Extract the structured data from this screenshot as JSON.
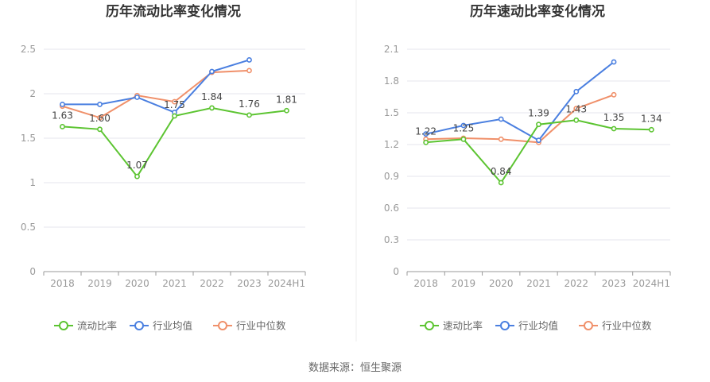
{
  "source_text": "数据来源：恒生聚源",
  "colors": {
    "primary": "#5cc431",
    "average": "#4a7fe0",
    "median": "#f0906a",
    "grid": "#e6e6ee",
    "axis": "#999999"
  },
  "chart_data": [
    {
      "type": "line",
      "title": "历年流动比率变化情况",
      "categories": [
        "2018",
        "2019",
        "2020",
        "2021",
        "2022",
        "2023",
        "2024H1"
      ],
      "ylim": [
        0,
        2.5
      ],
      "yticks": [
        "0",
        "0.5",
        "1",
        "1.5",
        "2",
        "2.5"
      ],
      "grid": true,
      "legend_position": "bottom",
      "series": [
        {
          "name": "流动比率",
          "color": "#5cc431",
          "values": [
            1.63,
            1.6,
            1.07,
            1.75,
            1.84,
            1.76,
            1.81
          ],
          "labels": [
            "1.63",
            "1.60",
            "1.07",
            "1.75",
            "1.84",
            "1.76",
            "1.81"
          ]
        },
        {
          "name": "行业均值",
          "color": "#4a7fe0",
          "values": [
            1.88,
            1.88,
            1.96,
            1.79,
            2.25,
            2.38,
            null
          ]
        },
        {
          "name": "行业中位数",
          "color": "#f0906a",
          "values": [
            1.86,
            1.73,
            1.98,
            1.91,
            2.24,
            2.26,
            null
          ]
        }
      ]
    },
    {
      "type": "line",
      "title": "历年速动比率变化情况",
      "categories": [
        "2018",
        "2019",
        "2020",
        "2021",
        "2022",
        "2023",
        "2024H1"
      ],
      "ylim": [
        0,
        2.1
      ],
      "yticks": [
        "0",
        "0.3",
        "0.6",
        "0.9",
        "1.2",
        "1.5",
        "1.8",
        "2.1"
      ],
      "grid": true,
      "legend_position": "bottom",
      "series": [
        {
          "name": "速动比率",
          "color": "#5cc431",
          "values": [
            1.22,
            1.25,
            0.84,
            1.39,
            1.43,
            1.35,
            1.34
          ],
          "labels": [
            "1.22",
            "1.25",
            "0.84",
            "1.39",
            "1.43",
            "1.35",
            "1.34"
          ]
        },
        {
          "name": "行业均值",
          "color": "#4a7fe0",
          "values": [
            1.3,
            1.38,
            1.44,
            1.24,
            1.7,
            1.98,
            null
          ]
        },
        {
          "name": "行业中位数",
          "color": "#f0906a",
          "values": [
            1.25,
            1.26,
            1.25,
            1.22,
            1.54,
            1.67,
            null
          ]
        }
      ]
    }
  ]
}
